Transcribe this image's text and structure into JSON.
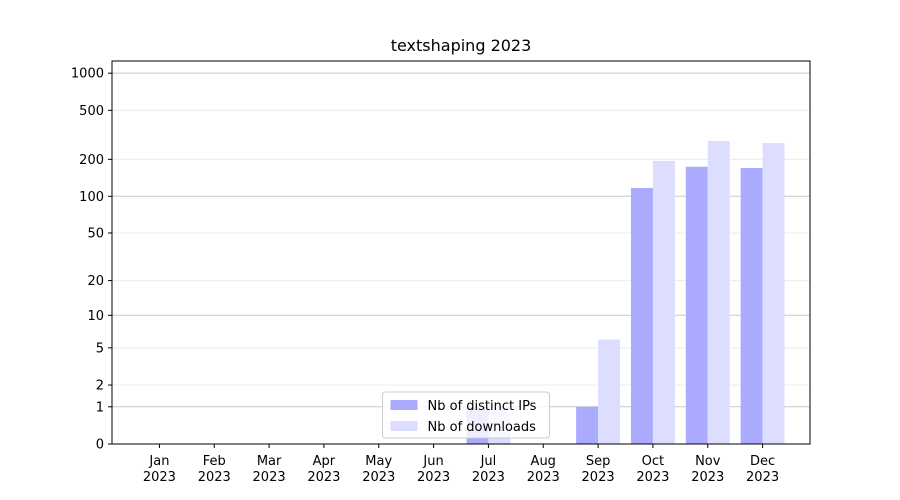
{
  "chart_data": {
    "type": "bar",
    "title": "textshaping 2023",
    "categories": [
      "Jan 2023",
      "Feb 2023",
      "Mar 2023",
      "Apr 2023",
      "May 2023",
      "Jun 2023",
      "Jul 2023",
      "Aug 2023",
      "Sep 2023",
      "Oct 2023",
      "Nov 2023",
      "Dec 2023"
    ],
    "series": [
      {
        "name": "Nb of distinct IPs",
        "color": "#aaaaff",
        "values": [
          0,
          0,
          0,
          0,
          0,
          0,
          1,
          0,
          1,
          117,
          174,
          170
        ]
      },
      {
        "name": "Nb of downloads",
        "color": "#ddddff",
        "values": [
          0,
          0,
          0,
          0,
          0,
          0,
          1,
          0,
          6,
          194,
          282,
          271
        ]
      }
    ],
    "yscale": "log1p",
    "ylim": [
      0,
      1255
    ],
    "yticks": [
      0,
      1,
      2,
      5,
      10,
      20,
      50,
      100,
      200,
      500,
      1000
    ],
    "grid": true,
    "legend": "lower center"
  }
}
